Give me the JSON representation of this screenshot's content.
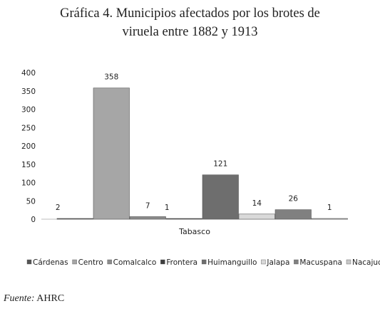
{
  "title_line1": "Gráfica 4. Municipios afectados por los brotes de",
  "title_line2": "viruela entre 1882 y 1913",
  "source_label": "Fuente:",
  "source_value": "AHRC",
  "chart_data": {
    "type": "bar",
    "title": "Gráfica 4. Municipios afectados por los brotes de viruela entre 1882 y 1913",
    "xlabel": "",
    "ylabel": "",
    "categories": [
      "Tabasco"
    ],
    "ylim": [
      0,
      400
    ],
    "yticks": [
      0,
      50,
      100,
      150,
      200,
      250,
      300,
      350,
      400
    ],
    "grid": false,
    "legend_position": "bottom",
    "series": [
      {
        "name": "Cárdenas",
        "values": [
          2
        ],
        "color": "#555555"
      },
      {
        "name": "Centro",
        "values": [
          358
        ],
        "color": "#a6a6a6"
      },
      {
        "name": "Comalcalco",
        "values": [
          7
        ],
        "color": "#8c8c8c"
      },
      {
        "name": "Frontera",
        "values": [
          1
        ],
        "color": "#3f3f3f"
      },
      {
        "name": "Huimanguillo",
        "values": [
          121
        ],
        "color": "#6e6e6e"
      },
      {
        "name": "Jalapa",
        "values": [
          14
        ],
        "color": "#d9d9d9"
      },
      {
        "name": "Macuspana",
        "values": [
          26
        ],
        "color": "#808080"
      },
      {
        "name": "Nacajuca",
        "values": [
          1
        ],
        "color": "#c8c8c8"
      }
    ]
  }
}
